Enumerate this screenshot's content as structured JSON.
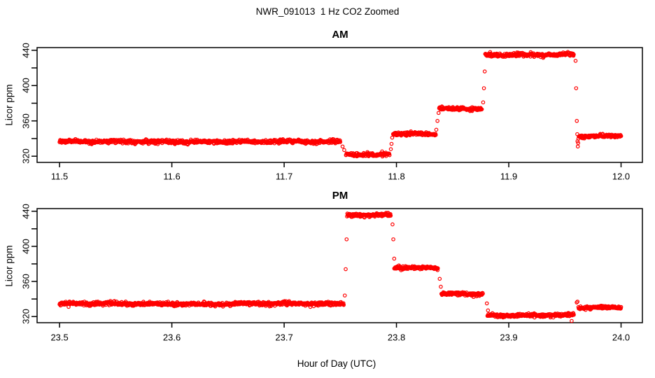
{
  "title": "NWR_091013  1 Hz CO2 Zoomed",
  "xlabel": "Hour of Day (UTC)",
  "marker_color": "#ff0000",
  "axis_color": "#000000",
  "chart_data": [
    {
      "type": "scatter",
      "title": "AM",
      "ylabel": "Licor ppm",
      "marker": "open-circle",
      "sample_rate_hz": 1,
      "xlim": [
        11.48,
        12.019
      ],
      "ylim": [
        313,
        443
      ],
      "xticks": [
        11.5,
        11.6,
        11.7,
        11.8,
        11.9,
        12.0
      ],
      "xtick_labels": [
        "11.5",
        "11.6",
        "11.7",
        "11.8",
        "11.9",
        "12.0"
      ],
      "yticks_minor": [
        320,
        340,
        360,
        380,
        400,
        420,
        440
      ],
      "yticks": [
        320,
        360,
        400,
        440
      ],
      "ytick_labels": [
        "320",
        "360",
        "400",
        "440"
      ],
      "grid": false,
      "segments": [
        {
          "t_start": 11.5,
          "t_end": 11.75,
          "ppm": 336.5,
          "noise": 1.0
        },
        {
          "t_start": 11.755,
          "t_end": 11.794,
          "ppm": 321.5,
          "noise": 0.9
        },
        {
          "t_start": 11.797,
          "t_end": 11.835,
          "ppm": 345.0,
          "noise": 0.9
        },
        {
          "t_start": 11.838,
          "t_end": 11.876,
          "ppm": 374.0,
          "noise": 0.9
        },
        {
          "t_start": 11.879,
          "t_end": 11.958,
          "ppm": 435.0,
          "noise": 1.0
        },
        {
          "t_start": 11.962,
          "t_end": 12.0,
          "ppm": 343.0,
          "noise": 0.9
        }
      ],
      "transition_points": [
        [
          11.752,
          331
        ],
        [
          11.7535,
          327
        ],
        [
          11.795,
          328
        ],
        [
          11.7956,
          334
        ],
        [
          11.7962,
          341
        ],
        [
          11.8355,
          350
        ],
        [
          11.8365,
          360
        ],
        [
          11.8375,
          369
        ],
        [
          11.8772,
          381
        ],
        [
          11.8779,
          397
        ],
        [
          11.8786,
          416
        ],
        [
          11.9595,
          428
        ],
        [
          11.96,
          397
        ],
        [
          11.9606,
          360
        ],
        [
          11.961,
          345
        ],
        [
          11.9612,
          337
        ],
        [
          11.9615,
          331
        ],
        [
          11.9618,
          335
        ]
      ]
    },
    {
      "type": "scatter",
      "title": "PM",
      "ylabel": "Licor ppm",
      "marker": "open-circle",
      "sample_rate_hz": 1,
      "xlim": [
        23.48,
        24.019
      ],
      "ylim": [
        313,
        443
      ],
      "xticks": [
        23.5,
        23.6,
        23.7,
        23.8,
        23.9,
        24.0
      ],
      "xtick_labels": [
        "23.5",
        "23.6",
        "23.7",
        "23.8",
        "23.9",
        "24.0"
      ],
      "yticks_minor": [
        320,
        340,
        360,
        380,
        400,
        420,
        440
      ],
      "yticks": [
        320,
        360,
        400,
        440
      ],
      "ytick_labels": [
        "320",
        "360",
        "400",
        "440"
      ],
      "grid": false,
      "segments": [
        {
          "t_start": 23.5,
          "t_end": 23.753,
          "ppm": 334.5,
          "noise": 1.0
        },
        {
          "t_start": 23.756,
          "t_end": 23.795,
          "ppm": 435.5,
          "noise": 1.0
        },
        {
          "t_start": 23.798,
          "t_end": 23.837,
          "ppm": 375.5,
          "noise": 0.9
        },
        {
          "t_start": 23.84,
          "t_end": 23.877,
          "ppm": 346.0,
          "noise": 0.9
        },
        {
          "t_start": 23.881,
          "t_end": 23.958,
          "ppm": 321.5,
          "noise": 0.9
        },
        {
          "t_start": 23.962,
          "t_end": 24.0,
          "ppm": 330.5,
          "noise": 0.9
        }
      ],
      "transition_points": [
        [
          23.754,
          344
        ],
        [
          23.7548,
          374
        ],
        [
          23.7556,
          408
        ],
        [
          23.7965,
          425
        ],
        [
          23.7972,
          408
        ],
        [
          23.798,
          386
        ],
        [
          23.8385,
          363
        ],
        [
          23.8395,
          354
        ],
        [
          23.8805,
          335
        ],
        [
          23.8815,
          327
        ],
        [
          23.956,
          315
        ],
        [
          23.9605,
          336
        ],
        [
          23.9612,
          337
        ]
      ]
    }
  ]
}
